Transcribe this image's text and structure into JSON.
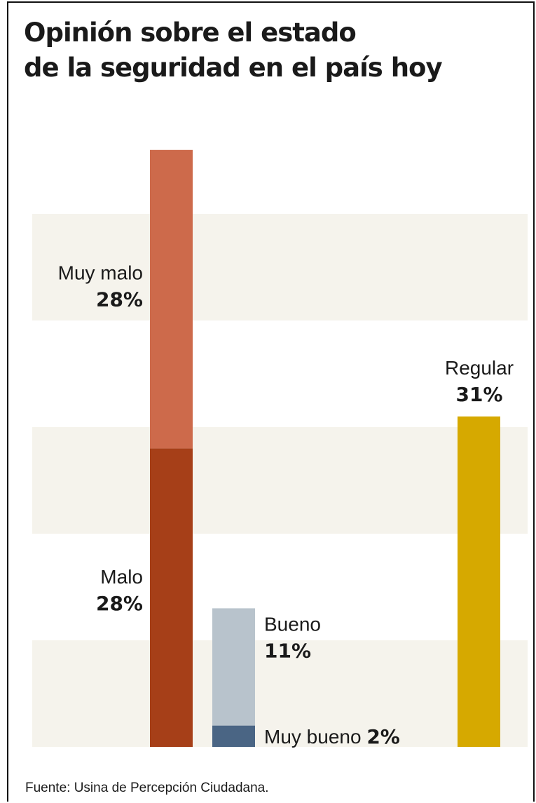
{
  "chart_data": {
    "type": "bar",
    "title": "Opinión sobre el estado\nde la seguridad en el país hoy",
    "source": "Fuente: Usina de Percepción Ciudadana.",
    "stacks": [
      {
        "segments": [
          {
            "name": "Malo",
            "value": 28,
            "value_label": "28%",
            "color": "#a63f18"
          },
          {
            "name": "Muy malo",
            "value": 28,
            "value_label": "28%",
            "color": "#cd6a4b"
          }
        ]
      },
      {
        "segments": [
          {
            "name": "Muy bueno",
            "value": 2,
            "value_label": "2%",
            "color": "#4a6584"
          },
          {
            "name": "Bueno",
            "value": 11,
            "value_label": "11%",
            "color": "#b8c3cc"
          }
        ]
      },
      {
        "segments": [
          {
            "name": "Regular",
            "value": 31,
            "value_label": "31%",
            "color": "#d6a900"
          }
        ]
      }
    ],
    "ylim": [
      0,
      60
    ],
    "grid": "alternating horizontal bands",
    "band_color": "#f5f3ec"
  }
}
